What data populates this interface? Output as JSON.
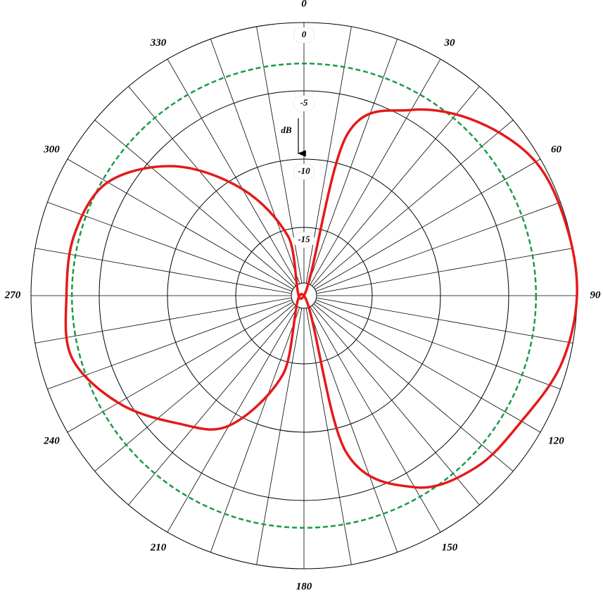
{
  "chart_data": {
    "type": "polar",
    "r_label": "dB",
    "angles": [
      0,
      15,
      30,
      45,
      60,
      75,
      90,
      105,
      120,
      135,
      150,
      165,
      180,
      195,
      210,
      225,
      240,
      255,
      270,
      285,
      300,
      315,
      330,
      345
    ],
    "series": [
      {
        "color": "#e41a1a",
        "values": [
          -20,
          -7.8,
          -4.3,
          -2.0,
          -0.4,
          -0.1,
          0,
          -0.5,
          -1.6,
          -2.2,
          -3.8,
          -8.2,
          -20,
          -14,
          -9,
          -6.8,
          -4.3,
          -2.4,
          -2.6,
          -2.6,
          -3.4,
          -6.6,
          -11,
          -15.5
        ]
      }
    ],
    "reference_level": -3,
    "reference_color": "#1a9a4a",
    "rlim": [
      -20,
      0
    ],
    "rticks": [
      0,
      -5,
      -10,
      -15
    ],
    "thetaticks": [
      0,
      30,
      60,
      90,
      120,
      150,
      180,
      210,
      240,
      270,
      300,
      330
    ],
    "theta_grid_step": 10
  }
}
